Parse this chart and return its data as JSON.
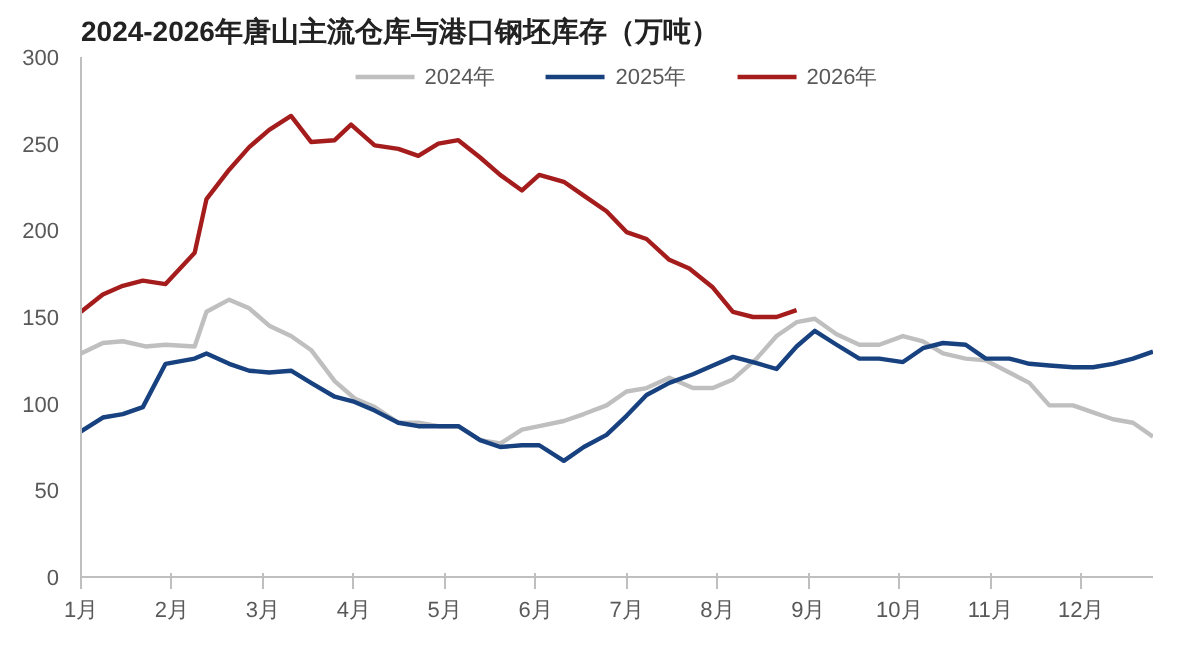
{
  "chart_data": {
    "type": "line",
    "title": "2024-2026年唐山主流仓库与港口钢坯库存（万吨）",
    "xlim": [
      1,
      12.79
    ],
    "xticks": [
      {
        "value": 1,
        "label": "1月"
      },
      {
        "value": 2,
        "label": "2月"
      },
      {
        "value": 3,
        "label": "3月"
      },
      {
        "value": 4,
        "label": "4月"
      },
      {
        "value": 5,
        "label": "5月"
      },
      {
        "value": 6,
        "label": "6月"
      },
      {
        "value": 7,
        "label": "7月"
      },
      {
        "value": 8,
        "label": "8月"
      },
      {
        "value": 9,
        "label": "9月"
      },
      {
        "value": 10,
        "label": "10月"
      },
      {
        "value": 11,
        "label": "11月"
      },
      {
        "value": 12,
        "label": "12月"
      }
    ],
    "ylim": [
      0,
      300
    ],
    "yticks": [
      0,
      50,
      100,
      150,
      200,
      250,
      300
    ],
    "grid": false,
    "legend": "top",
    "marker": "none",
    "line_style": "solid",
    "series": [
      {
        "name": "2024年",
        "color": "#bfbfbf",
        "x": [
          1,
          1.24,
          1.46,
          1.71,
          1.93,
          2.25,
          2.38,
          2.63,
          2.85,
          3.07,
          3.31,
          3.53,
          3.79,
          4.01,
          4.23,
          4.49,
          4.71,
          4.93,
          5.15,
          5.39,
          5.61,
          5.85,
          6.04,
          6.31,
          6.53,
          6.78,
          7.0,
          7.22,
          7.47,
          7.73,
          7.95,
          8.17,
          8.43,
          8.65,
          8.87,
          9.07,
          9.31,
          9.56,
          9.78,
          10.04,
          10.26,
          10.48,
          10.73,
          10.95,
          11.21,
          11.43,
          11.65,
          11.91,
          12.13,
          12.35,
          12.57,
          12.79
        ],
        "values": [
          129,
          135,
          136,
          133,
          134,
          133,
          153,
          160,
          155,
          145,
          139,
          131,
          113,
          103,
          98,
          89,
          89,
          87,
          87,
          79,
          77,
          85,
          87,
          90,
          94,
          99,
          107,
          109,
          115,
          109,
          109,
          114,
          126,
          139,
          147,
          149,
          140,
          134,
          134,
          139,
          136,
          129,
          126,
          125,
          118,
          112,
          99,
          99,
          95,
          91,
          89,
          81
        ]
      },
      {
        "name": "2025年",
        "color": "#17417f",
        "x": [
          1,
          1.24,
          1.46,
          1.68,
          1.93,
          2.25,
          2.38,
          2.63,
          2.85,
          3.07,
          3.31,
          3.53,
          3.79,
          4.01,
          4.23,
          4.49,
          4.71,
          4.93,
          5.15,
          5.39,
          5.61,
          5.85,
          6.04,
          6.31,
          6.53,
          6.78,
          7.0,
          7.22,
          7.47,
          7.73,
          7.95,
          8.17,
          8.39,
          8.65,
          8.87,
          9.07,
          9.31,
          9.56,
          9.78,
          10.04,
          10.26,
          10.48,
          10.73,
          10.95,
          11.21,
          11.43,
          11.65,
          11.91,
          12.13,
          12.35,
          12.57,
          12.79
        ],
        "values": [
          84,
          92,
          94,
          98,
          123,
          126,
          129,
          123,
          119,
          118,
          119,
          112,
          104,
          101,
          96,
          89,
          87,
          87,
          87,
          79,
          75,
          76,
          76,
          67,
          75,
          82,
          93,
          105,
          112,
          117,
          122,
          127,
          124,
          120,
          133,
          142,
          134,
          126,
          126,
          124,
          132,
          135,
          134,
          126,
          126,
          123,
          122,
          121,
          121,
          123,
          126,
          130
        ]
      },
      {
        "name": "2026年",
        "color": "#a51c1c",
        "x": [
          1,
          1.24,
          1.46,
          1.68,
          1.93,
          2.25,
          2.38,
          2.63,
          2.85,
          3.07,
          3.31,
          3.53,
          3.79,
          3.97,
          4.23,
          4.49,
          4.71,
          4.93,
          5.15,
          5.39,
          5.61,
          5.85,
          6.04,
          6.31,
          6.53,
          6.78,
          7.0,
          7.22,
          7.47,
          7.69,
          7.95,
          8.17,
          8.39,
          8.65,
          8.87
        ],
        "values": [
          153,
          163,
          168,
          171,
          169,
          187,
          218,
          235,
          248,
          258,
          266,
          251,
          252,
          261,
          249,
          247,
          243,
          250,
          252,
          242,
          232,
          223,
          232,
          228,
          220,
          211,
          199,
          195,
          183,
          178,
          167,
          153,
          150,
          150,
          154
        ]
      }
    ]
  }
}
